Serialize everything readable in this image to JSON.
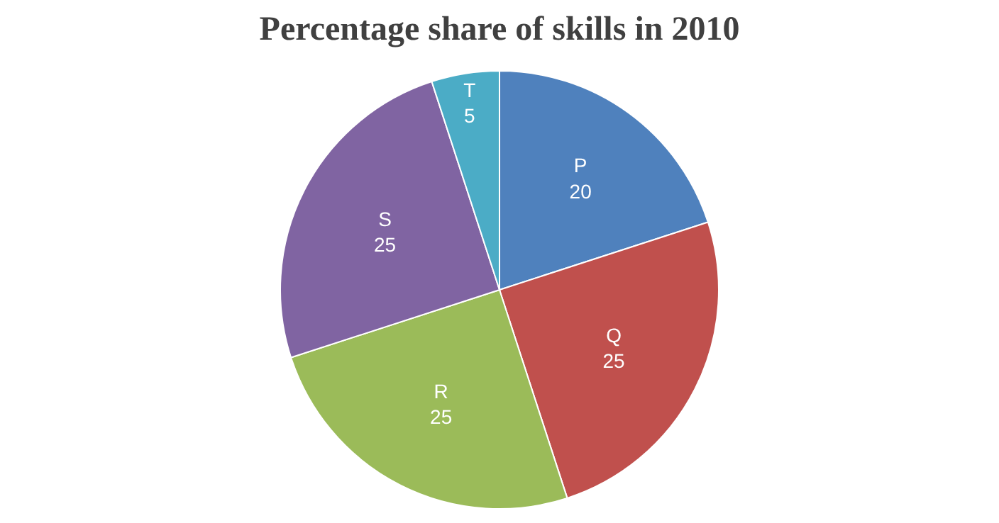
{
  "chart_data": {
    "type": "pie",
    "title": "Percentage share of skills in 2010",
    "categories": [
      "P",
      "Q",
      "R",
      "S",
      "T"
    ],
    "values": [
      20,
      25,
      25,
      25,
      5
    ],
    "colors": [
      "#4f81bd",
      "#c0504d",
      "#9bbb59",
      "#8064a2",
      "#4bacc6"
    ],
    "data_labels": true,
    "legend": false
  }
}
